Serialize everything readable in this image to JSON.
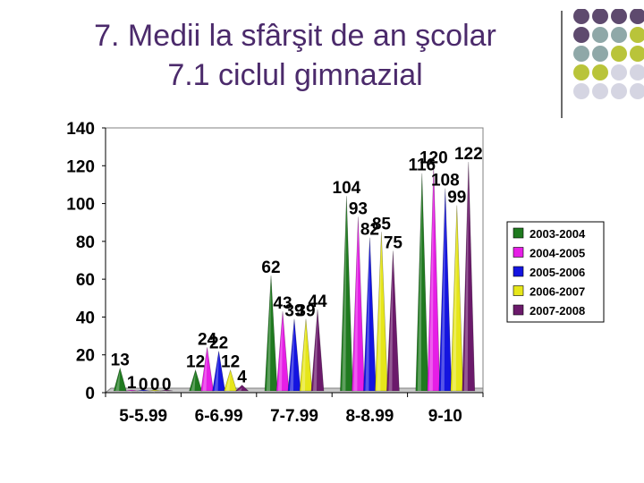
{
  "title": {
    "line1": "7. Medii la sfârşit de an şcolar",
    "line2": "7.1 ciclul gimnazial"
  },
  "decoration": {
    "dot_colors": [
      "#5e4a6e",
      "#8fa8a8",
      "#b9c43a",
      "#d5d5e2"
    ]
  },
  "chart_data": {
    "type": "bar",
    "bar_shape": "cone",
    "categories": [
      "5-5.99",
      "6-6.99",
      "7-7.99",
      "8-8.99",
      "9-10"
    ],
    "yticks": [
      "0",
      "20",
      "40",
      "60",
      "80",
      "100",
      "120",
      "140"
    ],
    "ylim": [
      0,
      140
    ],
    "grid": false,
    "legend_position": "right",
    "series": [
      {
        "name": "2003-2004",
        "color": "#1f7a1f",
        "values": [
          13,
          12,
          62,
          104,
          116
        ]
      },
      {
        "name": "2004-2005",
        "color": "#e61ee6",
        "values": [
          1,
          24,
          43,
          93,
          120
        ]
      },
      {
        "name": "2005-2006",
        "color": "#1414e0",
        "values": [
          0,
          22,
          39,
          82,
          108
        ]
      },
      {
        "name": "2006-2007",
        "color": "#e6e619",
        "values": [
          0,
          12,
          39,
          85,
          99
        ]
      },
      {
        "name": "2007-2008",
        "color": "#6b1a6b",
        "values": [
          0,
          4,
          44,
          75,
          122
        ]
      }
    ]
  }
}
